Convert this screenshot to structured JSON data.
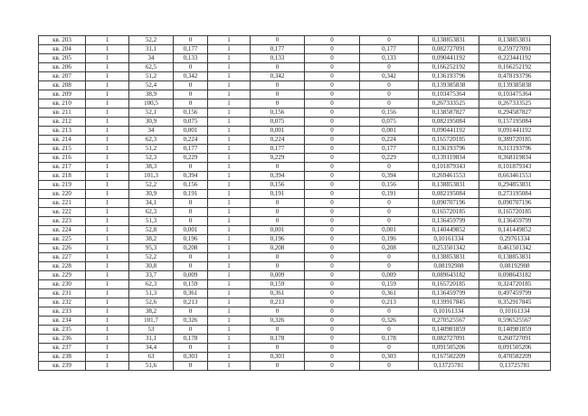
{
  "table": {
    "row_label_prefix": "кв.",
    "decimal_separator": ",",
    "rows": [
      [
        "кв. 203",
        "1",
        "52,2",
        "0",
        "1",
        "0",
        "0",
        "0",
        "0,138853831",
        "0,138853831"
      ],
      [
        "кв. 204",
        "1",
        "31,1",
        "0,177",
        "1",
        "0,177",
        "0",
        "0,177",
        "0,082727091",
        "0,259727091"
      ],
      [
        "кв. 205",
        "1",
        "34",
        "0,133",
        "1",
        "0,133",
        "0",
        "0,133",
        "0,090441192",
        "0,223441192"
      ],
      [
        "кв. 206",
        "1",
        "62,5",
        "0",
        "1",
        "0",
        "0",
        "0",
        "0,166252192",
        "0,166252192"
      ],
      [
        "кв. 207",
        "1",
        "51,2",
        "0,342",
        "1",
        "0,342",
        "0",
        "0,342",
        "0,136193796",
        "0,478193796"
      ],
      [
        "кв. 208",
        "1",
        "52,4",
        "0",
        "1",
        "0",
        "0",
        "0",
        "0,139385838",
        "0,139385838"
      ],
      [
        "кв. 209",
        "1",
        "38,9",
        "0",
        "1",
        "0",
        "0",
        "0",
        "0,103475364",
        "0,103475364"
      ],
      [
        "кв. 210",
        "1",
        "100,5",
        "0",
        "1",
        "0",
        "0",
        "0",
        "0,267333525",
        "0,267333525"
      ],
      [
        "кв. 211",
        "1",
        "52,1",
        "0,156",
        "1",
        "0,156",
        "0",
        "0,156",
        "0,138587827",
        "0,294587827"
      ],
      [
        "кв. 212",
        "1",
        "30,9",
        "0,075",
        "1",
        "0,075",
        "0",
        "0,075",
        "0,082195084",
        "0,157195084"
      ],
      [
        "кв. 213",
        "1",
        "34",
        "0,001",
        "1",
        "0,001",
        "0",
        "0,001",
        "0,090441192",
        "0,091441192"
      ],
      [
        "кв. 214",
        "1",
        "62,3",
        "0,224",
        "1",
        "0,224",
        "0",
        "0,224",
        "0,165720185",
        "0,389720185"
      ],
      [
        "кв. 215",
        "1",
        "51,2",
        "0,177",
        "1",
        "0,177",
        "0",
        "0,177",
        "0,136193796",
        "0,313193796"
      ],
      [
        "кв. 216",
        "1",
        "52,3",
        "0,229",
        "1",
        "0,229",
        "0",
        "0,229",
        "0,139119834",
        "0,368119834"
      ],
      [
        "кв. 217",
        "1",
        "38,3",
        "0",
        "1",
        "0",
        "0",
        "0",
        "0,101879343",
        "0,101879343"
      ],
      [
        "кв. 218",
        "1",
        "101,3",
        "0,394",
        "1",
        "0,394",
        "0",
        "0,394",
        "0,269461553",
        "0,663461553"
      ],
      [
        "кв. 219",
        "1",
        "52,2",
        "0,156",
        "1",
        "0,156",
        "0",
        "0,156",
        "0,138853831",
        "0,294853831"
      ],
      [
        "кв. 220",
        "1",
        "30,9",
        "0,191",
        "1",
        "0,191",
        "0",
        "0,191",
        "0,082195084",
        "0,273195084"
      ],
      [
        "кв. 221",
        "1",
        "34,1",
        "0",
        "1",
        "0",
        "0",
        "0",
        "0,090707196",
        "0,090707196"
      ],
      [
        "кв. 222",
        "1",
        "62,3",
        "0",
        "1",
        "0",
        "0",
        "0",
        "0,165720185",
        "0,165720185"
      ],
      [
        "кв. 223",
        "1",
        "51,3",
        "0",
        "1",
        "0",
        "0",
        "0",
        "0,136459799",
        "0,136459799"
      ],
      [
        "кв. 224",
        "1",
        "52,8",
        "0,001",
        "1",
        "0,001",
        "0",
        "0,001",
        "0,140449852",
        "0,141449852"
      ],
      [
        "кв. 225",
        "1",
        "38,2",
        "0,196",
        "1",
        "0,196",
        "0",
        "0,196",
        "0,10161334",
        "0,29761334"
      ],
      [
        "кв. 226",
        "1",
        "95,3",
        "0,208",
        "1",
        "0,208",
        "0",
        "0,208",
        "0,253501342",
        "0,461501342"
      ],
      [
        "кв. 227",
        "1",
        "52,2",
        "0",
        "1",
        "0",
        "0",
        "0",
        "0,138853831",
        "0,138853831"
      ],
      [
        "кв. 228",
        "1",
        "30,8",
        "0",
        "1",
        "0",
        "0",
        "0",
        "0,08192908",
        "0,08192908"
      ],
      [
        "кв. 229",
        "1",
        "33,7",
        "0,009",
        "1",
        "0,009",
        "0",
        "0,009",
        "0,089643182",
        "0,098643182"
      ],
      [
        "кв. 230",
        "1",
        "62,3",
        "0,159",
        "1",
        "0,159",
        "0",
        "0,159",
        "0,165720185",
        "0,324720185"
      ],
      [
        "кв. 231",
        "1",
        "51,3",
        "0,361",
        "1",
        "0,361",
        "0",
        "0,361",
        "0,136459799",
        "0,497459799"
      ],
      [
        "кв. 232",
        "1",
        "52,6",
        "0,213",
        "1",
        "0,213",
        "0",
        "0,213",
        "0,139917845",
        "0,352917845"
      ],
      [
        "кв. 233",
        "1",
        "38,2",
        "0",
        "1",
        "0",
        "0",
        "0",
        "0,10161334",
        "0,10161334"
      ],
      [
        "кв. 234",
        "1",
        "101,7",
        "0,326",
        "1",
        "0,326",
        "0",
        "0,326",
        "0,270525567",
        "0,596525567"
      ],
      [
        "кв. 235",
        "1",
        "53",
        "0",
        "1",
        "0",
        "0",
        "0",
        "0,140981859",
        "0,140981859"
      ],
      [
        "кв. 236",
        "1",
        "31,1",
        "0,178",
        "1",
        "0,178",
        "0",
        "0,178",
        "0,082727091",
        "0,260727091"
      ],
      [
        "кв. 237",
        "1",
        "34,4",
        "0",
        "1",
        "0",
        "0",
        "0",
        "0,091505206",
        "0,091505206"
      ],
      [
        "кв. 238",
        "1",
        "63",
        "0,303",
        "1",
        "0,303",
        "0",
        "0,303",
        "0,167582209",
        "0,470582209"
      ],
      [
        "кв. 239",
        "1",
        "51,6",
        "0",
        "1",
        "0",
        "0",
        "0",
        "0,13725781",
        "0,13725781"
      ]
    ]
  }
}
